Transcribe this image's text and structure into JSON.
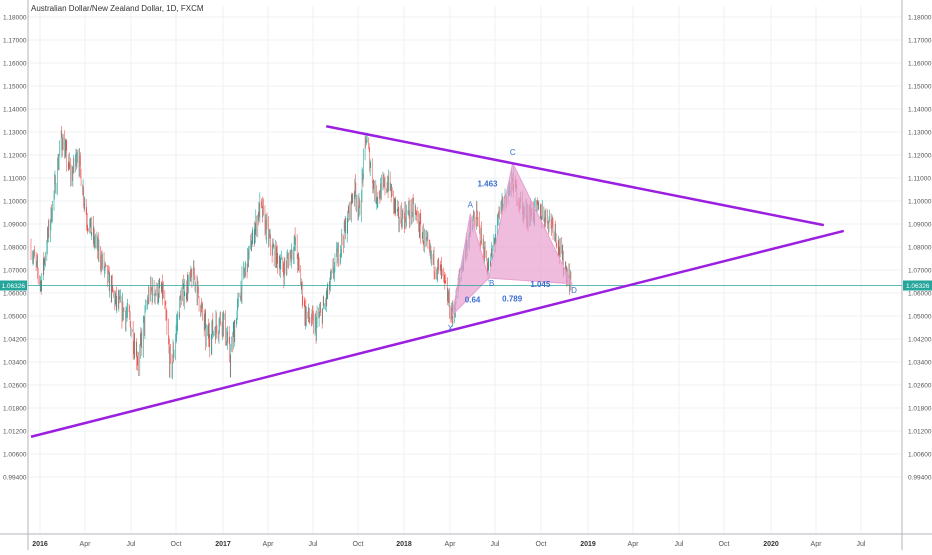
{
  "title": "Australian Dollar/New Zealand Dollar, 1D, FXCM",
  "chart_data": {
    "type": "candlestick",
    "y_ticks": [
      "1.18000",
      "1.17000",
      "1.16000",
      "1.15000",
      "1.14000",
      "1.13000",
      "1.12000",
      "1.11000",
      "1.10000",
      "1.09000",
      "1.08000",
      "1.07000",
      "1.06000",
      "1.05000",
      "1.04200",
      "1.03400",
      "1.02600",
      "1.01800",
      "1.01200",
      "1.00600",
      "0.99400"
    ],
    "ylim": [
      0.994,
      1.18
    ],
    "x_ticks": [
      {
        "label": "2016",
        "year": true
      },
      {
        "label": "Apr",
        "year": false
      },
      {
        "label": "Jul",
        "year": false
      },
      {
        "label": "Oct",
        "year": false
      },
      {
        "label": "2017",
        "year": true
      },
      {
        "label": "Apr",
        "year": false
      },
      {
        "label": "Jul",
        "year": false
      },
      {
        "label": "Oct",
        "year": false
      },
      {
        "label": "2018",
        "year": true
      },
      {
        "label": "Apr",
        "year": false
      },
      {
        "label": "Jul",
        "year": false
      },
      {
        "label": "Oct",
        "year": false
      },
      {
        "label": "2019",
        "year": true
      },
      {
        "label": "Apr",
        "year": false
      },
      {
        "label": "Jul",
        "year": false
      },
      {
        "label": "Oct",
        "year": false
      },
      {
        "label": "2020",
        "year": true
      },
      {
        "label": "Apr",
        "year": false
      },
      {
        "label": "Jul",
        "year": false
      }
    ],
    "current_price": {
      "label": "1.06326",
      "value": 1.06326
    },
    "price_path": [
      [
        "2016-01-01",
        1.08
      ],
      [
        "2016-01-20",
        1.064
      ],
      [
        "2016-02-10",
        1.095
      ],
      [
        "2016-03-01",
        1.128
      ],
      [
        "2016-03-20",
        1.11
      ],
      [
        "2016-04-01",
        1.122
      ],
      [
        "2016-04-20",
        1.092
      ],
      [
        "2016-05-15",
        1.076
      ],
      [
        "2016-06-15",
        1.056
      ],
      [
        "2016-07-10",
        1.05
      ],
      [
        "2016-07-30",
        1.034
      ],
      [
        "2016-08-20",
        1.061
      ],
      [
        "2016-09-15",
        1.06
      ],
      [
        "2016-10-01",
        1.03
      ],
      [
        "2016-10-20",
        1.058
      ],
      [
        "2016-11-15",
        1.068
      ],
      [
        "2016-12-10",
        1.042
      ],
      [
        "2017-01-10",
        1.05
      ],
      [
        "2017-01-25",
        1.035
      ],
      [
        "2017-02-15",
        1.062
      ],
      [
        "2017-03-10",
        1.084
      ],
      [
        "2017-03-25",
        1.098
      ],
      [
        "2017-04-15",
        1.08
      ],
      [
        "2017-05-10",
        1.07
      ],
      [
        "2017-06-01",
        1.082
      ],
      [
        "2017-06-20",
        1.052
      ],
      [
        "2017-07-10",
        1.046
      ],
      [
        "2017-07-28",
        1.054
      ],
      [
        "2017-08-20",
        1.074
      ],
      [
        "2017-09-10",
        1.09
      ],
      [
        "2017-09-25",
        1.106
      ],
      [
        "2017-10-05",
        1.095
      ],
      [
        "2017-10-18",
        1.128
      ],
      [
        "2017-11-05",
        1.102
      ],
      [
        "2017-12-01",
        1.108
      ],
      [
        "2017-12-20",
        1.092
      ],
      [
        "2018-01-20",
        1.096
      ],
      [
        "2018-02-20",
        1.076
      ],
      [
        "2018-03-15",
        1.068
      ],
      [
        "2018-04-05",
        1.05
      ],
      [
        "2018-05-01",
        1.08
      ],
      [
        "2018-05-20",
        1.094
      ],
      [
        "2018-06-15",
        1.07
      ],
      [
        "2018-07-10",
        1.098
      ],
      [
        "2018-08-01",
        1.108
      ],
      [
        "2018-08-25",
        1.094
      ],
      [
        "2018-09-20",
        1.096
      ],
      [
        "2018-10-20",
        1.09
      ],
      [
        "2018-11-05",
        1.075
      ],
      [
        "2018-11-25",
        1.063
      ]
    ],
    "trendlines": [
      {
        "name": "upper",
        "from": [
          "2017-08-01",
          1.1325
        ],
        "to": [
          "2020-04-01",
          1.0895
        ],
        "color": "#9b1fe0"
      },
      {
        "name": "lower",
        "from": [
          "2016-01-01",
          1.0105
        ],
        "to": [
          "2020-05-10",
          1.087
        ],
        "color": "#9b1fe0"
      }
    ],
    "harmonic_pattern": {
      "points": [
        {
          "label": "X",
          "date": "2018-04-05",
          "price": 1.0505
        },
        {
          "label": "A",
          "date": "2018-05-10",
          "price": 1.0945
        },
        {
          "label": "B",
          "date": "2018-06-15",
          "price": 1.0665
        },
        {
          "label": "C",
          "date": "2018-08-01",
          "price": 1.1165
        },
        {
          "label": "D",
          "date": "2018-11-25",
          "price": 1.064
        }
      ],
      "ratios": [
        "0.64",
        "1.463",
        "1.045",
        "0.789"
      ],
      "fill_color": "#e8a0d0"
    },
    "colors": {
      "up": "#26a69a",
      "down": "#ef5350",
      "trendline": "#9b1fe0",
      "pattern": "#e8a0d0",
      "price_line": "#26a69a"
    }
  }
}
